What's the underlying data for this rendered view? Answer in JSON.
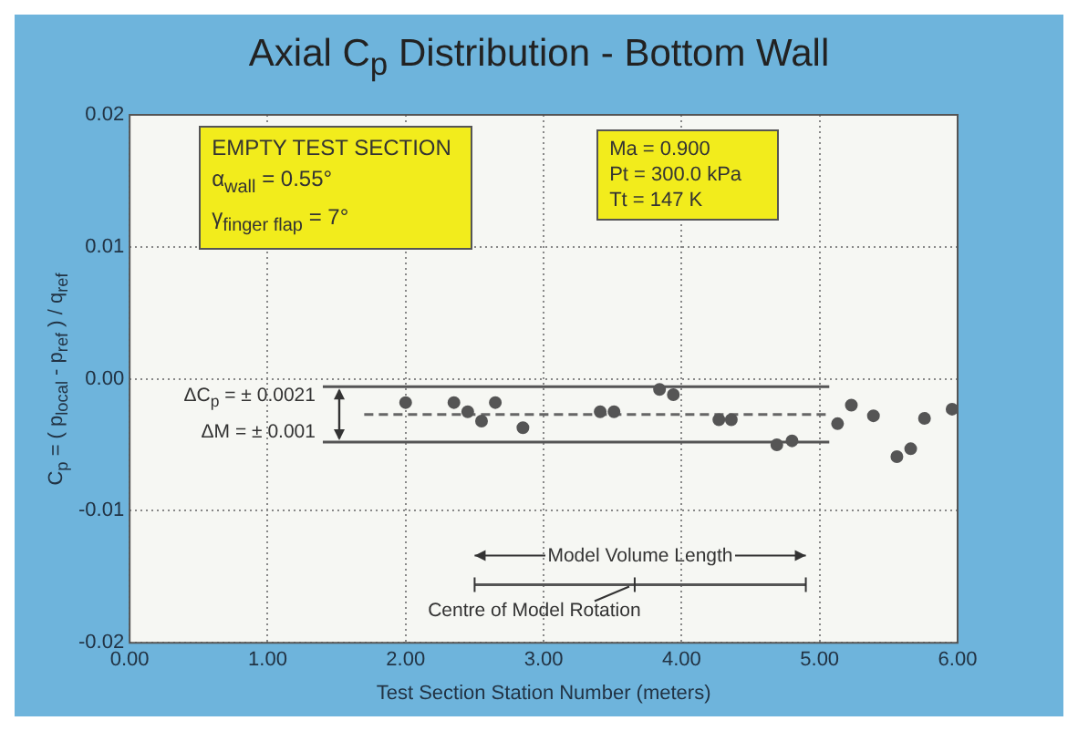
{
  "chart_data": {
    "type": "scatter",
    "title": "Axial C$_{p}$ Distribution - Bottom Wall",
    "xlabel": "Test Section Station Number (meters)",
    "ylabel": "C$_{p}$ = ( p$_{local}$ - p$_{ref}$ ) / q$_{ref}$",
    "xlim": [
      0,
      6
    ],
    "ylim": [
      -0.02,
      0.02
    ],
    "xticks": [
      {
        "value": 0,
        "label": "0.00"
      },
      {
        "value": 1,
        "label": "1.00"
      },
      {
        "value": 2,
        "label": "2.00"
      },
      {
        "value": 3,
        "label": "3.00"
      },
      {
        "value": 4,
        "label": "4.00"
      },
      {
        "value": 5,
        "label": "5.00"
      },
      {
        "value": 6,
        "label": "6.00"
      }
    ],
    "yticks": [
      -0.02,
      -0.01,
      {
        "value": 0,
        "label": "0.00"
      },
      0.01,
      0.02
    ],
    "grid": true,
    "legend": false,
    "marker": "circle",
    "series": [
      {
        "color": "#555555",
        "x": [
          2.0,
          2.35,
          2.45,
          2.55,
          2.65,
          2.85,
          3.41,
          3.51,
          3.84,
          3.94,
          4.27,
          4.36,
          4.69,
          4.8,
          5.13,
          5.23,
          5.39,
          5.56,
          5.66,
          5.76,
          5.96
        ],
        "values": [
          -0.0018,
          -0.0018,
          -0.0025,
          -0.0032,
          -0.0018,
          -0.0037,
          -0.0025,
          -0.0025,
          -0.0008,
          -0.0012,
          -0.0031,
          -0.0031,
          -0.005,
          -0.0047,
          -0.0034,
          -0.002,
          -0.0028,
          -0.0059,
          -0.0053,
          -0.003,
          -0.0023
        ]
      },
      {
        "type": "line",
        "color": "#555555",
        "line_style": "solid",
        "marker": "none",
        "x": [
          1.4,
          5.07
        ],
        "values": [
          -0.0006,
          -0.0006
        ]
      },
      {
        "type": "line",
        "color": "#666666",
        "line_style": "dashed",
        "marker": "none",
        "x": [
          1.7,
          5.07
        ],
        "values": [
          -0.0027,
          -0.0027
        ]
      },
      {
        "type": "line",
        "color": "#555555",
        "line_style": "solid",
        "marker": "none",
        "x": [
          1.4,
          5.07
        ],
        "values": [
          -0.0048,
          -0.0048
        ]
      },
      {
        "type": "line",
        "color": "#555555",
        "line_style": "solid",
        "marker": "none",
        "x": [
          2.5,
          3.66,
          4.9
        ],
        "values": [
          -0.0156,
          -0.0156,
          -0.0156
        ]
      }
    ],
    "annotations": [
      "EMPTY TEST SECTION",
      "α$_{wall}$ = 0.55°",
      "γ$_{finger flap}$ = 7°",
      "Ma = 0.900",
      "Pt = 300.0 kPa",
      "Tt = 147 K",
      "ΔC$_{p}$ = ± 0.0021",
      "ΔM = ± 0.001",
      "Model Volume Length",
      "Centre of Model Rotation"
    ]
  }
}
